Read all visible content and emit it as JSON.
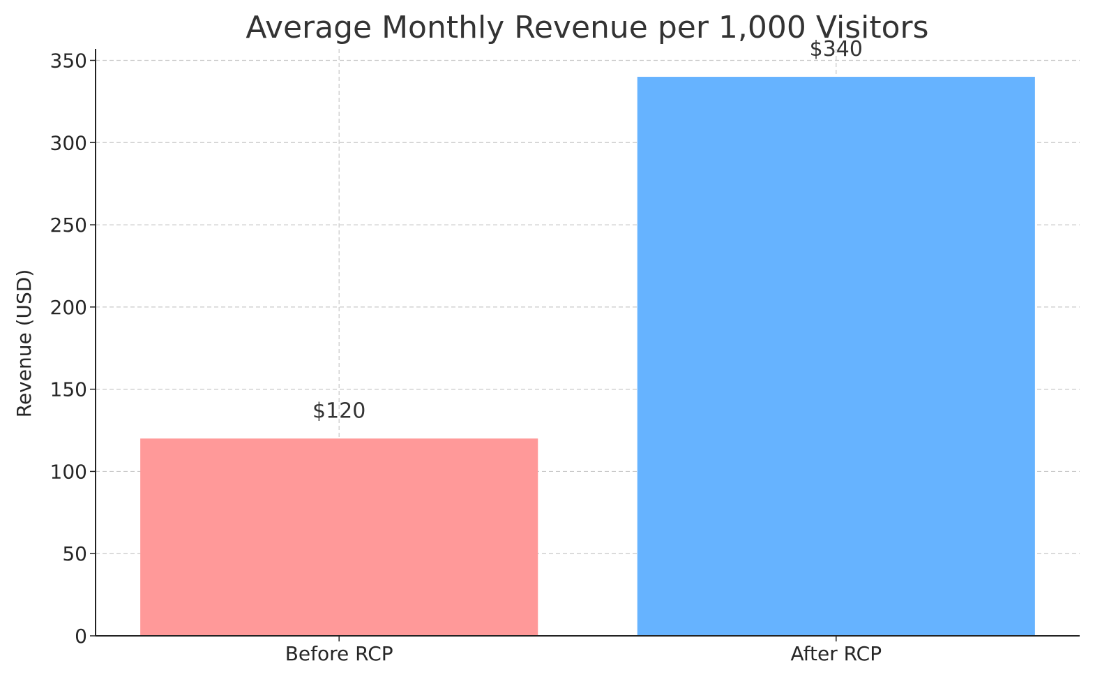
{
  "chart_data": {
    "type": "bar",
    "title": "Average Monthly Revenue per 1,000 Visitors",
    "xlabel": "",
    "ylabel": "Revenue (USD)",
    "categories": [
      "Before RCP",
      "After RCP"
    ],
    "values": [
      120,
      340
    ],
    "data_labels": [
      "$120",
      "$340"
    ],
    "colors": [
      "#ff9999",
      "#66b3ff"
    ],
    "ylim": [
      0,
      357
    ],
    "yticks": [
      0,
      50,
      100,
      150,
      200,
      250,
      300,
      350
    ],
    "grid": true,
    "legend": "none"
  }
}
